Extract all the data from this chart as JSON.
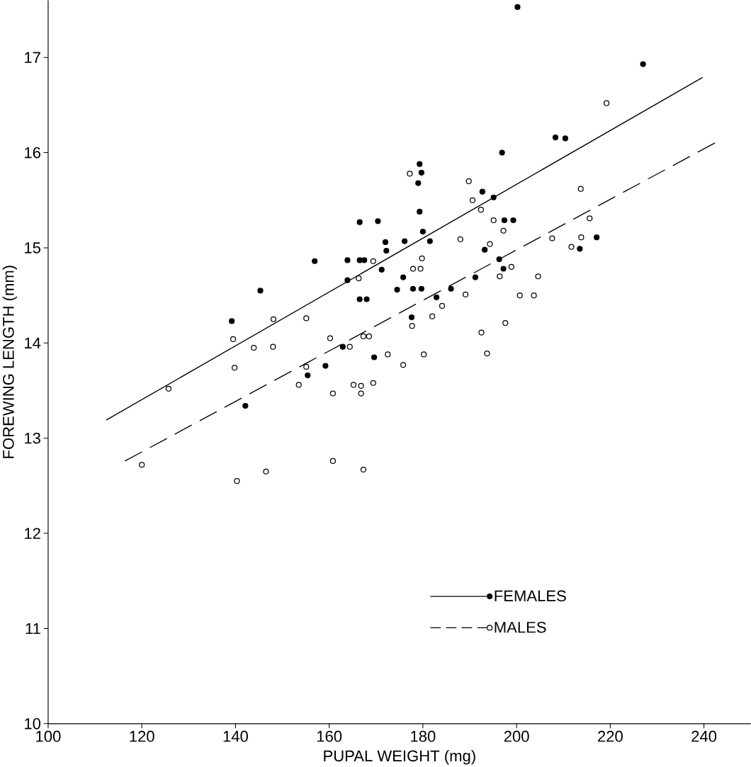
{
  "chart_data": {
    "type": "scatter",
    "xlabel": "PUPAL WEIGHT (mg)",
    "ylabel": "FOREWING LENGTH (mm)",
    "xlim": [
      100,
      250
    ],
    "ylim": [
      10,
      17.6
    ],
    "xticks": [
      100,
      120,
      140,
      160,
      180,
      200,
      220,
      240
    ],
    "yticks": [
      10,
      11,
      12,
      13,
      14,
      15,
      16,
      17
    ],
    "grid": false,
    "legend": "bottom right",
    "series": [
      {
        "name": "FEMALES",
        "color": "#000000",
        "marker": "circle",
        "x": [
          139.2,
          145.3,
          142.1,
          156.9,
          163.9,
          166.5,
          167.5,
          163.9,
          166.5,
          168,
          166.5,
          170.4,
          179.3,
          179.7,
          179,
          179.3,
          180,
          172,
          172.2,
          176.1,
          181.5,
          171.2,
          175.8,
          174.5,
          177.9,
          179.7,
          182.9,
          186,
          177.6,
          169.6,
          191.2,
          193.2,
          192.7,
          195.1,
          196.9,
          197.4,
          199.3,
          196.3,
          197.2,
          213.5,
          217.1,
          200.2,
          227,
          208.3,
          210.4,
          162.9,
          159.2,
          155.4
        ],
        "values": [
          14.23,
          14.55,
          13.34,
          14.86,
          14.87,
          14.87,
          14.87,
          14.66,
          14.46,
          14.46,
          15.27,
          15.28,
          15.88,
          15.79,
          15.68,
          15.38,
          15.17,
          15.06,
          14.97,
          15.07,
          15.07,
          14.77,
          14.69,
          14.56,
          14.57,
          14.57,
          14.48,
          14.57,
          14.27,
          13.85,
          14.69,
          14.98,
          15.59,
          15.53,
          16.0,
          15.29,
          15.29,
          14.88,
          14.78,
          14.99,
          15.11,
          17.53,
          16.93,
          16.16,
          16.15,
          13.96,
          13.76,
          13.66
        ]
      },
      {
        "type": "line",
        "color": "#000000",
        "marker": "none",
        "line_style": "solid",
        "x": [
          112.4,
          239.7
        ],
        "values": [
          13.19,
          16.79
        ]
      },
      {
        "name": "MALES",
        "color": "#ffffff",
        "marker": "circle",
        "x": [
          125.7,
          120,
          139.5,
          139.8,
          143.9,
          148,
          148.1,
          155.1,
          155.1,
          153.5,
          140.3,
          146.5,
          160.2,
          164.4,
          160.8,
          165.2,
          166.8,
          166.8,
          169.4,
          160.8,
          167.3,
          166.3,
          169.4,
          167.3,
          168.5,
          177.2,
          179.8,
          177.9,
          179.5,
          184.1,
          182,
          177.7,
          172.5,
          175.8,
          180.2,
          189.1,
          194.3,
          188,
          189.8,
          190.6,
          192.4,
          195.1,
          197.2,
          198.9,
          196.4,
          204.6,
          200.7,
          203.7,
          192.5,
          197.6,
          193.7,
          207.6,
          211.7,
          213.8,
          215.6,
          213.7,
          219.2
        ],
        "values": [
          13.52,
          12.72,
          14.04,
          13.74,
          13.95,
          13.96,
          14.25,
          14.26,
          13.75,
          13.56,
          12.55,
          12.65,
          14.05,
          13.96,
          13.47,
          13.56,
          13.55,
          13.47,
          13.58,
          12.76,
          12.67,
          14.68,
          14.86,
          14.07,
          14.07,
          15.78,
          14.89,
          14.78,
          14.78,
          14.39,
          14.28,
          14.18,
          13.88,
          13.77,
          13.88,
          14.51,
          15.04,
          15.09,
          15.7,
          15.5,
          15.4,
          15.29,
          15.18,
          14.8,
          14.7,
          14.7,
          14.5,
          14.5,
          14.11,
          14.21,
          13.89,
          15.1,
          15.01,
          15.11,
          15.31,
          15.62,
          16.52
        ]
      },
      {
        "type": "line",
        "color": "#000000",
        "marker": "none",
        "line_style": "dashed",
        "x": [
          116.4,
          243
        ],
        "values": [
          12.76,
          16.12
        ]
      }
    ]
  }
}
